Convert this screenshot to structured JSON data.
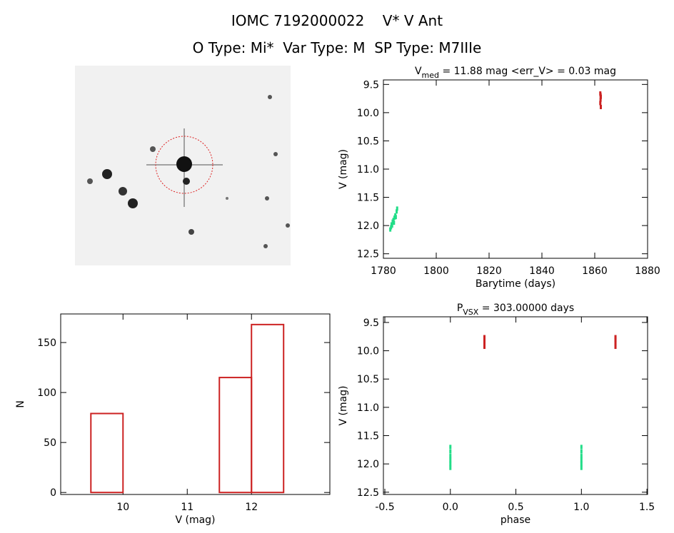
{
  "figure_title": "IOMC 7192000022    V* V Ant",
  "figure_subtitle": "O Type: Mi*  Var Type: M  SP Type: M7IIIe",
  "chart_data": [
    {
      "type": "scatter",
      "title": {
        "main": "V",
        "sub": "med",
        "rest": " = 11.88 mag <err_V> = 0.03 mag"
      },
      "xlabel": "Barytime (days)",
      "ylabel": "V (mag)",
      "xlim": [
        1780,
        1880
      ],
      "ylim": [
        12.58,
        9.42
      ],
      "xticks": [
        1780,
        1800,
        1820,
        1840,
        1860,
        1880
      ],
      "yticks": [
        9.5,
        {
          "value": 10,
          "label": "10.0"
        },
        10.5,
        {
          "value": 11,
          "label": "11.0"
        },
        11.5,
        {
          "value": 12,
          "label": "12.0"
        },
        12.5
      ],
      "series": [
        {
          "color": "#22dd88",
          "x": [
            1782.6,
            1782.9,
            1783.1,
            1783.3,
            1783.5,
            1783.8,
            1784.0,
            1784.2,
            1784.5,
            1784.7,
            1785.0,
            1785.2
          ],
          "y": [
            12.07,
            12.03,
            11.98,
            12.0,
            11.93,
            11.9,
            11.95,
            11.86,
            11.82,
            11.85,
            11.75,
            11.7
          ]
        },
        {
          "color": "#cc2222",
          "x": [
            1862.1,
            1862.2,
            1862.3,
            1862.2,
            1862.1,
            1862.3
          ],
          "y": [
            9.66,
            9.69,
            9.72,
            9.77,
            9.83,
            9.9
          ]
        }
      ]
    },
    {
      "type": "histogram",
      "xlabel": "V (mag)",
      "ylabel": "N",
      "xlim": [
        9.03,
        13.22
      ],
      "ylim": [
        -2,
        178.6
      ],
      "xticks": [
        10,
        11,
        12
      ],
      "yticks": [
        0,
        50,
        100,
        150
      ],
      "bins": [
        9.5,
        10,
        10.5,
        11,
        11.5,
        12,
        12.5
      ],
      "counts": [
        79,
        0,
        0,
        0,
        115,
        168
      ],
      "color": "#cc2222"
    },
    {
      "type": "scatter",
      "title": {
        "main": "P",
        "sub": "VSX",
        "rest": " = 303.00000 days"
      },
      "xlabel": "phase",
      "ylabel": "V (mag)",
      "xlim": [
        -0.511,
        1.505
      ],
      "ylim": [
        12.54,
        9.4
      ],
      "xticks": [
        -0.5,
        {
          "value": 0,
          "label": "0.0"
        },
        0.5,
        {
          "value": 1,
          "label": "1.0"
        },
        1.5
      ],
      "yticks": [
        9.5,
        {
          "value": 10,
          "label": "10.0"
        },
        10.5,
        {
          "value": 11,
          "label": "11.0"
        },
        11.5,
        {
          "value": 12,
          "label": "12.0"
        },
        12.5
      ],
      "series": [
        {
          "color": "#22dd88",
          "x": [
            0.0,
            0.0,
            0.0,
            0.0,
            0.0,
            0.0,
            1.0,
            1.0,
            1.0,
            1.0,
            1.0,
            1.0
          ],
          "y": [
            12.07,
            12.0,
            11.93,
            11.86,
            11.78,
            11.7,
            12.07,
            12.0,
            11.93,
            11.86,
            11.78,
            11.7
          ]
        },
        {
          "color": "#cc2222",
          "x": [
            0.26,
            0.26,
            0.26,
            0.26,
            1.26,
            1.26,
            1.26,
            1.26
          ],
          "y": [
            9.76,
            9.8,
            9.86,
            9.93,
            9.76,
            9.8,
            9.86,
            9.93
          ]
        }
      ]
    }
  ]
}
